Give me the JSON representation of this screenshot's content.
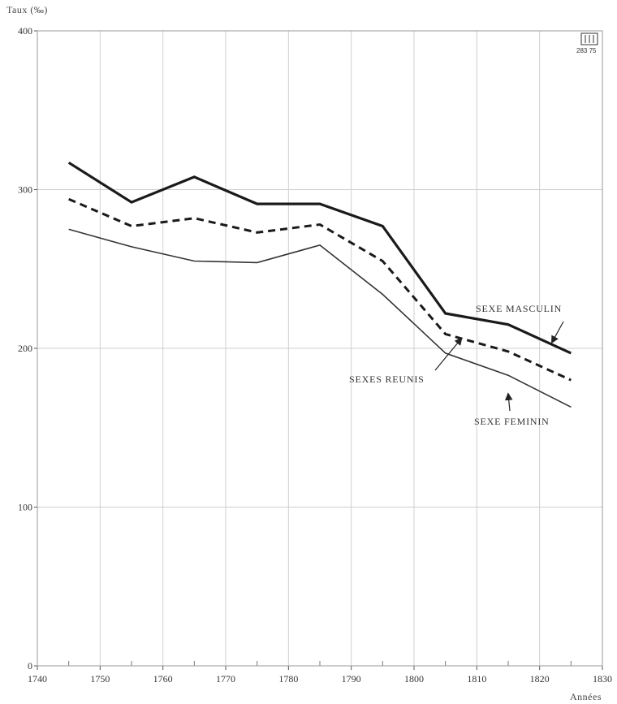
{
  "chart_data": {
    "type": "line",
    "ylabel": "Taux (‰)",
    "xlabel": "Années",
    "xlim": [
      1740,
      1830
    ],
    "ylim": [
      0,
      400
    ],
    "xticks": [
      1740,
      1750,
      1760,
      1770,
      1780,
      1790,
      1800,
      1810,
      1820,
      1830
    ],
    "yticks": [
      0,
      100,
      200,
      300,
      400
    ],
    "grid": true,
    "series": [
      {
        "name": "SEXE MASCULIN",
        "style": "thick-solid",
        "color": "#1a1a1a",
        "x": [
          1745,
          1755,
          1765,
          1775,
          1785,
          1795,
          1805,
          1815,
          1825
        ],
        "y": [
          317,
          292,
          308,
          291,
          291,
          277,
          222,
          215,
          197
        ]
      },
      {
        "name": "SEXES REUNIS",
        "style": "dashed",
        "color": "#1a1a1a",
        "x": [
          1745,
          1755,
          1765,
          1775,
          1785,
          1795,
          1805,
          1815,
          1825
        ],
        "y": [
          294,
          277,
          282,
          273,
          278,
          255,
          209,
          198,
          180
        ]
      },
      {
        "name": "SEXE FEMININ",
        "style": "thin-solid",
        "color": "#333333",
        "x": [
          1745,
          1755,
          1765,
          1775,
          1785,
          1795,
          1805,
          1815,
          1825
        ],
        "y": [
          275,
          264,
          255,
          254,
          265,
          234,
          197,
          183,
          163
        ]
      }
    ],
    "stamp": "283 75"
  }
}
